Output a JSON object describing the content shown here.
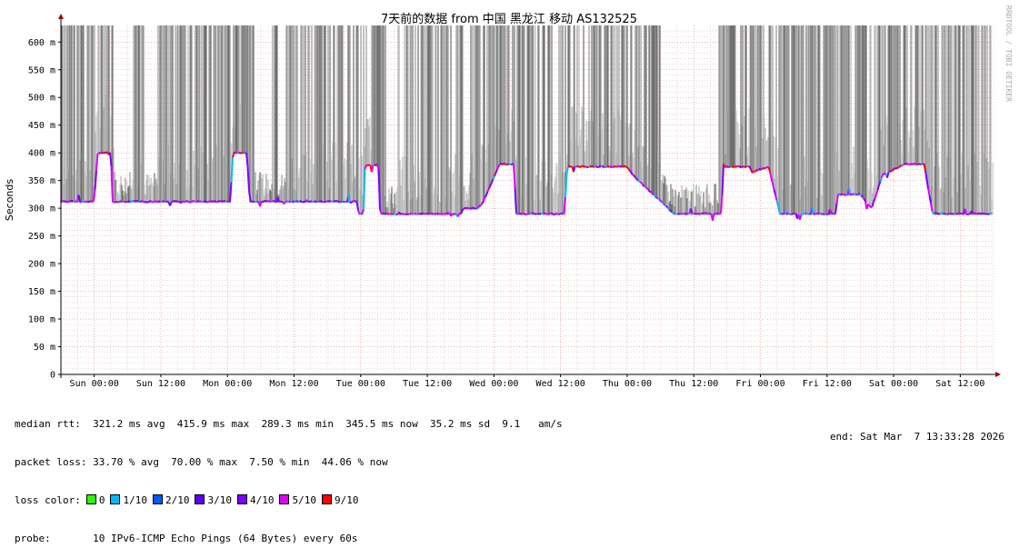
{
  "chart_data": {
    "type": "area",
    "title": "7天前的数据 from  中国 黑龙江 移动 AS132525",
    "ylabel": "Seconds",
    "ylim": [
      0,
      630
    ],
    "y_ticks": [
      {
        "value": 0,
        "label": "0"
      },
      {
        "value": 50,
        "label": "50 m"
      },
      {
        "value": 100,
        "label": "100 m"
      },
      {
        "value": 150,
        "label": "150 m"
      },
      {
        "value": 200,
        "label": "200 m"
      },
      {
        "value": 250,
        "label": "250 m"
      },
      {
        "value": 300,
        "label": "300 m"
      },
      {
        "value": 350,
        "label": "350 m"
      },
      {
        "value": 400,
        "label": "400 m"
      },
      {
        "value": 450,
        "label": "450 m"
      },
      {
        "value": 500,
        "label": "500 m"
      },
      {
        "value": 550,
        "label": "550 m"
      },
      {
        "value": 600,
        "label": "600 m"
      }
    ],
    "xlim_hours": [
      0,
      168
    ],
    "x_ticks": [
      {
        "hour": 6,
        "label": "Sun 00:00"
      },
      {
        "hour": 18,
        "label": "Sun 12:00"
      },
      {
        "hour": 30,
        "label": "Mon 00:00"
      },
      {
        "hour": 42,
        "label": "Mon 12:00"
      },
      {
        "hour": 54,
        "label": "Tue 00:00"
      },
      {
        "hour": 66,
        "label": "Tue 12:00"
      },
      {
        "hour": 78,
        "label": "Wed 00:00"
      },
      {
        "hour": 90,
        "label": "Wed 12:00"
      },
      {
        "hour": 102,
        "label": "Thu 00:00"
      },
      {
        "hour": 114,
        "label": "Thu 12:00"
      },
      {
        "hour": 126,
        "label": "Fri 00:00"
      },
      {
        "hour": 138,
        "label": "Fri 12:00"
      },
      {
        "hour": 150,
        "label": "Sat 00:00"
      },
      {
        "hour": 162,
        "label": "Sat 12:00"
      }
    ],
    "median_rtt_segments": [
      [
        0,
        312
      ],
      [
        6,
        312
      ],
      [
        6.6,
        400
      ],
      [
        9,
        400
      ],
      [
        9.3,
        312
      ],
      [
        30.5,
        312
      ],
      [
        31,
        400
      ],
      [
        33.5,
        400
      ],
      [
        34,
        312
      ],
      [
        53.4,
        312
      ],
      [
        53.6,
        290
      ],
      [
        54.5,
        290
      ],
      [
        54.8,
        378
      ],
      [
        57.2,
        378
      ],
      [
        57.5,
        290
      ],
      [
        72,
        290
      ],
      [
        72.5,
        300
      ],
      [
        75,
        300
      ],
      [
        76,
        310
      ],
      [
        79,
        380
      ],
      [
        81.6,
        380
      ],
      [
        82,
        290
      ],
      [
        90.5,
        290
      ],
      [
        90.7,
        290
      ],
      [
        91.2,
        375
      ],
      [
        102,
        375
      ],
      [
        103,
        360
      ],
      [
        110.5,
        290
      ],
      [
        119,
        290
      ],
      [
        119.3,
        375
      ],
      [
        124,
        375
      ],
      [
        124.5,
        365
      ],
      [
        127.5,
        375
      ],
      [
        129.5,
        290
      ],
      [
        139.5,
        290
      ],
      [
        140,
        325
      ],
      [
        144,
        325
      ],
      [
        146,
        300
      ],
      [
        148,
        360
      ],
      [
        152,
        380
      ],
      [
        155.5,
        380
      ],
      [
        157,
        290
      ],
      [
        168,
        290
      ]
    ],
    "loss_percent_avg": 33.7,
    "grid": true
  },
  "stats": {
    "median_rtt": "median rtt:  321.2 ms avg  415.9 ms max  289.3 ms min  345.5 ms now  35.2 ms sd  9.1   am/s",
    "packet_loss": "packet loss: 33.70 % avg  70.00 % max  7.50 % min  44.06 % now",
    "loss_color_label": "loss color:",
    "loss_colors": [
      {
        "label": "0",
        "color": "#26ff00"
      },
      {
        "label": "1/10",
        "color": "#00b8ff"
      },
      {
        "label": "2/10",
        "color": "#0059ff"
      },
      {
        "label": "3/10",
        "color": "#5e00ff"
      },
      {
        "label": "4/10",
        "color": "#7e00ff"
      },
      {
        "label": "5/10",
        "color": "#dd00ff"
      },
      {
        "label": "9/10",
        "color": "#ff0000"
      }
    ],
    "probe": "probe:       10 IPv6-ICMP Echo Pings (64 Bytes) every 60s",
    "end": "end: Sat Mar  7 13:33:28 2026"
  },
  "watermark": "RRDTOOL / TOBI OETIKER",
  "colors": {
    "smoke_dark": "#555555",
    "smoke_light": "#bbbbbb",
    "grid_minor": "#f0b0b0",
    "grid_major": "#e08080",
    "axis": "#000000",
    "arrow": "#a00000"
  }
}
